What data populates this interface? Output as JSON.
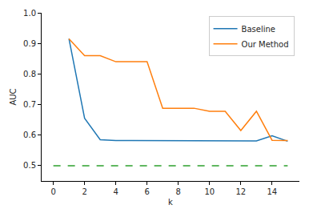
{
  "chart_data": {
    "type": "line",
    "x_label": "k",
    "y_label": "AUC",
    "x": [
      1,
      2,
      3,
      4,
      5,
      6,
      7,
      8,
      9,
      10,
      11,
      12,
      13,
      14,
      15
    ],
    "series": [
      {
        "name": "Baseline",
        "color": "#1f77b4",
        "line_style": "solid",
        "values": [
          0.915,
          0.655,
          0.585,
          0.582,
          0.582,
          0.582,
          0.582,
          0.582,
          0.582,
          0.582,
          0.582,
          0.582,
          0.581,
          0.598,
          0.58
        ]
      },
      {
        "name": "Our Method",
        "color": "#ff7f0e",
        "line_style": "solid",
        "values": [
          0.915,
          0.86,
          0.86,
          0.84,
          0.84,
          0.84,
          0.688,
          0.688,
          0.688,
          0.678,
          0.678,
          0.615,
          0.678,
          0.583,
          0.582
        ]
      },
      {
        "color": "#2ca02c",
        "line_style": "dashed",
        "x": [
          0,
          15
        ],
        "values": [
          0.5,
          0.5
        ]
      }
    ],
    "xlim": [
      -0.75,
      15.75
    ],
    "ylim": [
      0.45,
      1.0
    ],
    "xticks": [
      0,
      2,
      4,
      6,
      8,
      10,
      12,
      14
    ],
    "yticks": [
      0.5,
      0.6,
      0.7,
      0.8,
      0.9,
      {
        "value": 1.0,
        "label": "1.0"
      }
    ],
    "legend": "upper right",
    "grid": false
  }
}
